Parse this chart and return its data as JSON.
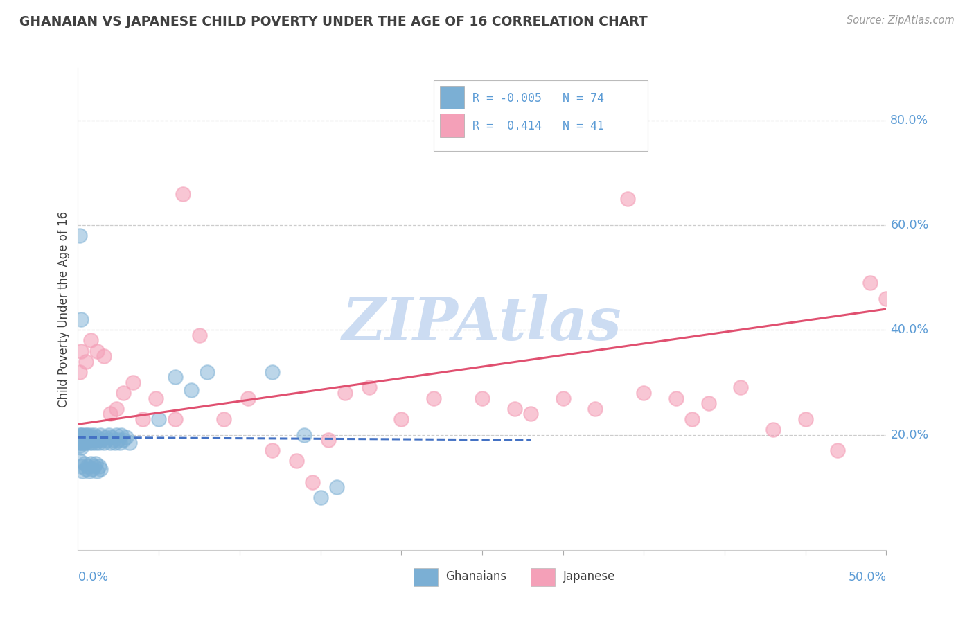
{
  "title": "GHANAIAN VS JAPANESE CHILD POVERTY UNDER THE AGE OF 16 CORRELATION CHART",
  "source": "Source: ZipAtlas.com",
  "ghanaian_color": "#7bafd4",
  "japanese_color": "#f4a0b8",
  "trend_blue": "#4472c4",
  "trend_pink": "#e05070",
  "ghanaian_R": -0.005,
  "ghanaian_N": 74,
  "japanese_R": 0.414,
  "japanese_N": 41,
  "watermark": "ZIPAtlas",
  "watermark_color": "#ccdcf2",
  "title_color": "#404040",
  "axis_color": "#5b9bd5",
  "ylabel_values": [
    0.2,
    0.4,
    0.6,
    0.8
  ],
  "ylabel_labels": [
    "20.0%",
    "40.0%",
    "60.0%",
    "80.0%"
  ],
  "xmin": 0.0,
  "xmax": 0.5,
  "ymin": -0.02,
  "ymax": 0.9,
  "ghanaian_trend_x": [
    0.0,
    0.28
  ],
  "ghanaian_trend_y": [
    0.195,
    0.19
  ],
  "japanese_trend_x": [
    0.0,
    0.5
  ],
  "japanese_trend_y": [
    0.22,
    0.44
  ],
  "ghanaian_x": [
    0.001,
    0.001,
    0.001,
    0.001,
    0.001,
    0.002,
    0.002,
    0.002,
    0.002,
    0.003,
    0.003,
    0.003,
    0.003,
    0.004,
    0.004,
    0.004,
    0.005,
    0.005,
    0.005,
    0.006,
    0.006,
    0.007,
    0.007,
    0.008,
    0.008,
    0.009,
    0.009,
    0.01,
    0.01,
    0.011,
    0.012,
    0.012,
    0.013,
    0.014,
    0.015,
    0.016,
    0.017,
    0.018,
    0.019,
    0.02,
    0.021,
    0.022,
    0.023,
    0.024,
    0.025,
    0.026,
    0.027,
    0.028,
    0.03,
    0.032,
    0.001,
    0.002,
    0.003,
    0.004,
    0.005,
    0.006,
    0.007,
    0.008,
    0.009,
    0.01,
    0.011,
    0.012,
    0.013,
    0.014,
    0.05,
    0.06,
    0.07,
    0.08,
    0.12,
    0.15,
    0.001,
    0.002,
    0.14,
    0.16
  ],
  "ghanaian_y": [
    0.195,
    0.2,
    0.185,
    0.19,
    0.18,
    0.195,
    0.2,
    0.185,
    0.175,
    0.195,
    0.19,
    0.185,
    0.2,
    0.19,
    0.185,
    0.195,
    0.2,
    0.185,
    0.19,
    0.195,
    0.2,
    0.19,
    0.185,
    0.2,
    0.19,
    0.195,
    0.185,
    0.19,
    0.2,
    0.185,
    0.195,
    0.19,
    0.185,
    0.2,
    0.19,
    0.185,
    0.195,
    0.19,
    0.2,
    0.185,
    0.195,
    0.19,
    0.185,
    0.2,
    0.19,
    0.185,
    0.2,
    0.19,
    0.195,
    0.185,
    0.15,
    0.14,
    0.13,
    0.145,
    0.135,
    0.14,
    0.13,
    0.145,
    0.135,
    0.14,
    0.145,
    0.13,
    0.14,
    0.135,
    0.23,
    0.31,
    0.285,
    0.32,
    0.32,
    0.08,
    0.58,
    0.42,
    0.2,
    0.1
  ],
  "japanese_x": [
    0.001,
    0.002,
    0.005,
    0.008,
    0.012,
    0.016,
    0.02,
    0.024,
    0.028,
    0.034,
    0.04,
    0.048,
    0.06,
    0.075,
    0.09,
    0.105,
    0.12,
    0.135,
    0.145,
    0.155,
    0.165,
    0.18,
    0.2,
    0.22,
    0.25,
    0.27,
    0.3,
    0.32,
    0.35,
    0.37,
    0.39,
    0.41,
    0.43,
    0.45,
    0.47,
    0.49,
    0.5,
    0.34,
    0.28,
    0.38,
    0.065
  ],
  "japanese_y": [
    0.32,
    0.36,
    0.34,
    0.38,
    0.36,
    0.35,
    0.24,
    0.25,
    0.28,
    0.3,
    0.23,
    0.27,
    0.23,
    0.39,
    0.23,
    0.27,
    0.17,
    0.15,
    0.11,
    0.19,
    0.28,
    0.29,
    0.23,
    0.27,
    0.27,
    0.25,
    0.27,
    0.25,
    0.28,
    0.27,
    0.26,
    0.29,
    0.21,
    0.23,
    0.17,
    0.49,
    0.46,
    0.65,
    0.24,
    0.23,
    0.66
  ]
}
